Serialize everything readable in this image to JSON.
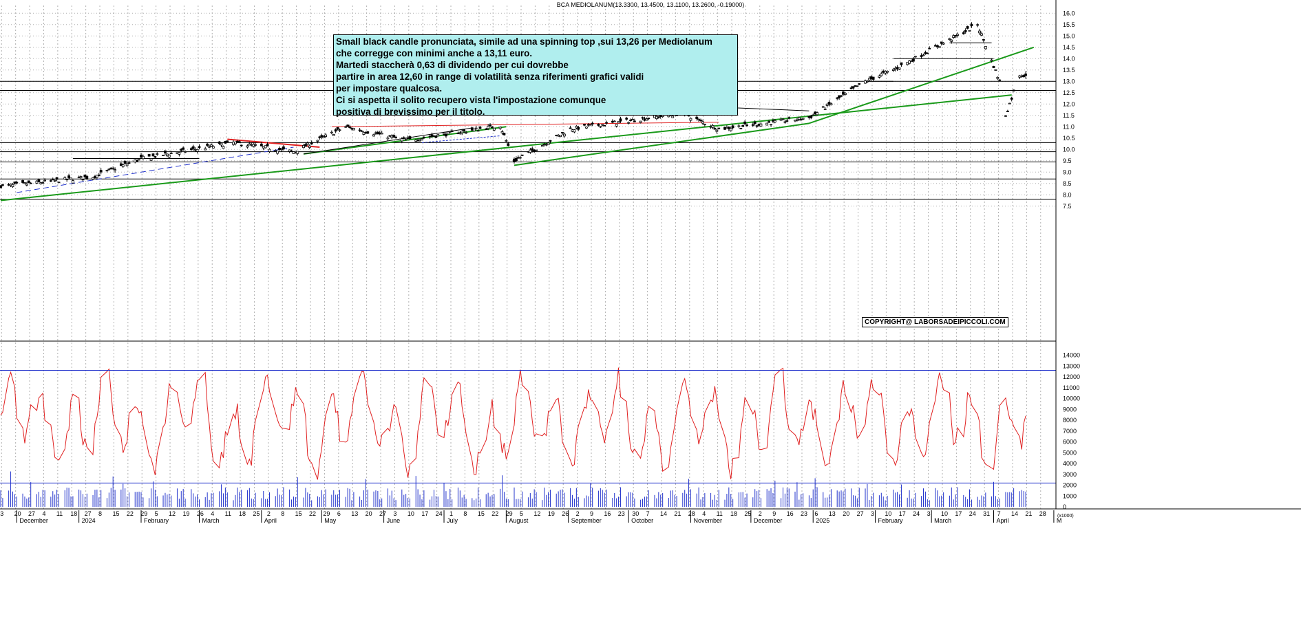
{
  "title": "BCA MEDIOLANUM(13.3300, 13.4500, 13.1100, 13.2600, -0.19000)",
  "comment": {
    "lines": [
      "Small black candle pronunciata, simile ad una spinning top ,sui 13,26 per Mediolanum",
      "che corregge con minimi anche a 13,11 euro.",
      "Martedi staccherà 0,63 di dividendo per cui dovrebbe",
      "partire in area 12,60 in range di volatilità senza riferimenti grafici validi",
      "per impostare qualcosa.",
      "Ci si aspetta il solito recupero vista l'impostazione comunque",
      "positiva di brevissimo per il titolo."
    ]
  },
  "copyright": "COPYRIGHT@ LABORSADEIPICCOLI.COM",
  "colors": {
    "grid": "#b0b0b0",
    "candle": "#000000",
    "trend_green": "#1a9a1a",
    "trend_red": "#e02020",
    "trend_blue": "#2233cc",
    "oscillator": "#e02020",
    "volume": "#2233cc",
    "comment_bg": "#b0eeee"
  },
  "chart_data": [
    {
      "type": "candlestick",
      "name": "price",
      "ylim": [
        7.3,
        16.0
      ],
      "y_ticks": [
        "7.5",
        "8.0",
        "8.5",
        "9.0",
        "9.5",
        "10.0",
        "10.5",
        "11.0",
        "11.5",
        "12.0",
        "12.5",
        "13.0",
        "13.5",
        "14.0",
        "14.5",
        "15.0",
        "15.5",
        "16.0"
      ],
      "x_tick_labels": [
        "3",
        "20",
        "27",
        "4",
        "11",
        "18",
        "27",
        "8",
        "15",
        "22",
        "29",
        "5",
        "12",
        "19",
        "26",
        "4",
        "11",
        "18",
        "25",
        "2",
        "8",
        "15",
        "22",
        "29",
        "6",
        "13",
        "20",
        "27",
        "3",
        "10",
        "17",
        "24",
        "1",
        "8",
        "15",
        "22",
        "29",
        "5",
        "12",
        "19",
        "26",
        "2",
        "9",
        "16",
        "23",
        "30",
        "7",
        "14",
        "21",
        "28",
        "4",
        "11",
        "18",
        "25",
        "2",
        "9",
        "16",
        "23",
        "6",
        "13",
        "20",
        "27",
        "3",
        "10",
        "17",
        "24",
        "3",
        "10",
        "17",
        "24",
        "31",
        "7",
        "14",
        "21",
        "28"
      ],
      "month_labels": [
        "December",
        "2024",
        "February",
        "March",
        "April",
        "May",
        "June",
        "July",
        "August",
        "September",
        "October",
        "November",
        "December",
        "2025",
        "February",
        "March",
        "April",
        "M"
      ],
      "key_points": [
        {
          "date": "2023-11-27",
          "close": 8.4
        },
        {
          "date": "2024-01-08",
          "close": 8.8
        },
        {
          "date": "2024-02-01",
          "close": 9.6
        },
        {
          "date": "2024-03-18",
          "close": 10.3
        },
        {
          "date": "2024-04-17",
          "close": 9.9
        },
        {
          "date": "2024-05-13",
          "close": 11.0
        },
        {
          "date": "2024-06-12",
          "close": 10.4
        },
        {
          "date": "2024-07-29",
          "close": 11.05
        },
        {
          "date": "2024-08-05",
          "close": 9.5
        },
        {
          "date": "2024-09-02",
          "close": 10.9
        },
        {
          "date": "2024-10-28",
          "close": 11.6
        },
        {
          "date": "2024-11-15",
          "close": 10.9
        },
        {
          "date": "2024-12-30",
          "close": 11.4
        },
        {
          "date": "2025-01-27",
          "close": 13.0
        },
        {
          "date": "2025-02-12",
          "close": 13.6
        },
        {
          "date": "2025-03-24",
          "close": 15.5
        },
        {
          "date": "2025-04-04",
          "close": 13.0
        },
        {
          "date": "2025-04-07",
          "close": 11.5
        },
        {
          "date": "2025-04-14",
          "close": 13.3
        },
        {
          "date": "2025-04-17",
          "open": 13.33,
          "high": 13.45,
          "low": 13.11,
          "close": 13.26
        }
      ],
      "horizontal_levels": [
        7.8,
        8.7,
        9.45,
        9.9,
        10.3,
        12.6,
        13.0
      ]
    },
    {
      "type": "line",
      "name": "oscillator",
      "ylim": [
        0,
        14000
      ],
      "y_ticks": [
        "0",
        "1000",
        "2000",
        "3000",
        "4000",
        "5000",
        "6000",
        "7000",
        "8000",
        "9000",
        "10000",
        "11000",
        "12000",
        "13000",
        "14000"
      ],
      "unit_label": "(x1000)",
      "reference_levels": [
        2200,
        12600
      ]
    },
    {
      "type": "bar",
      "name": "volume",
      "ylim": [
        0,
        14000
      ]
    }
  ]
}
